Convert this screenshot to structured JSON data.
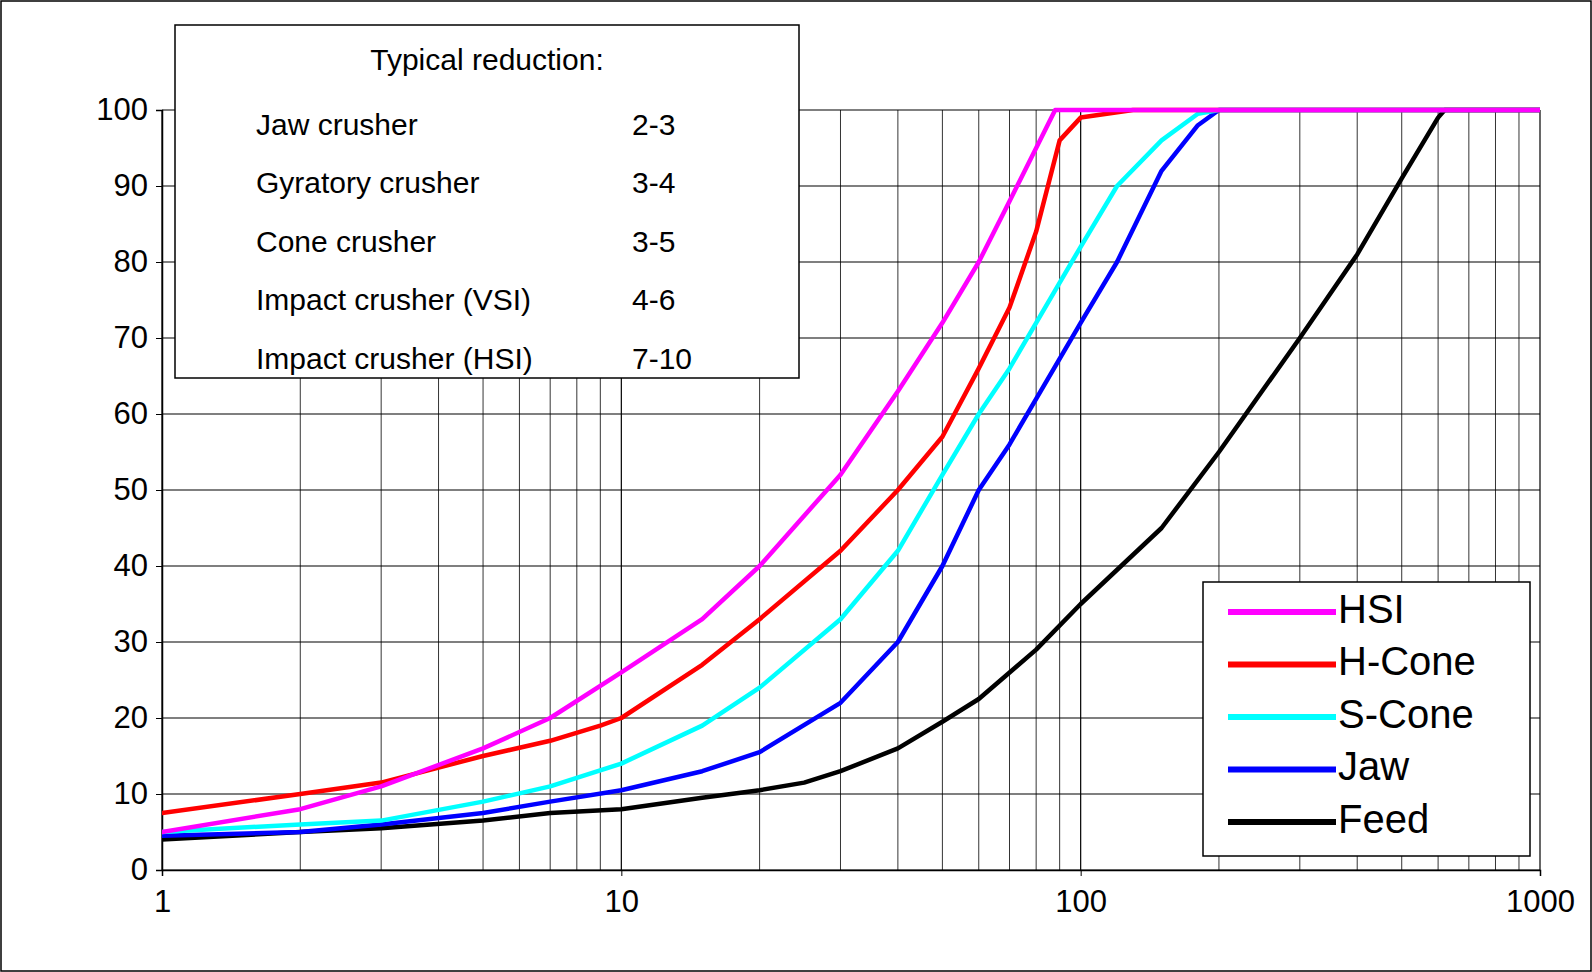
{
  "chart_data": {
    "type": "line",
    "log": "x",
    "grid": true,
    "legend": "lower right",
    "xlim": [
      1,
      1000
    ],
    "xticks": [
      1,
      10,
      100,
      1000
    ],
    "x_minor_grid": [
      2,
      3,
      4,
      5,
      6,
      7,
      8,
      9,
      20,
      30,
      40,
      50,
      60,
      70,
      80,
      90,
      200,
      300,
      400,
      500,
      600,
      700,
      800,
      900
    ],
    "ylim": [
      0,
      100
    ],
    "yticks": [
      0,
      10,
      20,
      30,
      40,
      50,
      60,
      70,
      80,
      90,
      100
    ],
    "annotation": {
      "title": "Typical reduction:",
      "rows": [
        {
          "label": "Jaw crusher",
          "value": "2-3"
        },
        {
          "label": "Gyratory crusher",
          "value": "3-4"
        },
        {
          "label": "Cone crusher",
          "value": "3-5"
        },
        {
          "label": "Impact crusher (VSI)",
          "value": "4-6"
        },
        {
          "label": "Impact crusher (HSI)",
          "value": "7-10"
        }
      ]
    },
    "series": [
      {
        "name": "HSI",
        "color": "#ff00ff",
        "x": [
          1,
          2,
          3,
          5,
          7,
          10,
          15,
          20,
          30,
          40,
          50,
          60,
          70,
          80,
          88,
          1000
        ],
        "values": [
          5,
          8,
          11,
          16,
          20,
          26,
          33,
          40,
          52,
          63,
          72,
          80,
          88,
          95,
          100,
          100
        ]
      },
      {
        "name": "H-Cone",
        "color": "#ff0000",
        "x": [
          1,
          2,
          3,
          5,
          7,
          9,
          10,
          15,
          20,
          30,
          40,
          50,
          60,
          70,
          80,
          90,
          100,
          130,
          1000
        ],
        "values": [
          7.5,
          10,
          11.5,
          15,
          17,
          19,
          20,
          27,
          33,
          42,
          50,
          57,
          66,
          74,
          84,
          96,
          99,
          100,
          100
        ]
      },
      {
        "name": "S-Cone",
        "color": "#00ffff",
        "x": [
          1,
          2,
          3,
          5,
          7,
          10,
          15,
          20,
          30,
          40,
          50,
          60,
          70,
          80,
          100,
          120,
          150,
          180,
          200,
          1000
        ],
        "values": [
          5,
          6,
          6.5,
          9,
          11,
          14,
          19,
          24,
          33,
          42,
          52,
          60,
          66,
          72,
          82,
          90,
          96,
          99.5,
          100,
          100
        ]
      },
      {
        "name": "Jaw",
        "color": "#0000ff",
        "x": [
          1,
          2,
          3,
          5,
          7,
          10,
          15,
          20,
          30,
          40,
          50,
          60,
          70,
          80,
          100,
          120,
          150,
          180,
          200,
          1000
        ],
        "values": [
          4.5,
          5,
          6,
          7.5,
          9,
          10.5,
          13,
          15.5,
          22,
          30,
          40,
          50,
          56,
          62,
          72,
          80,
          92,
          98,
          100,
          100
        ]
      },
      {
        "name": "Feed",
        "color": "#000000",
        "x": [
          1,
          2,
          3,
          5,
          7,
          10,
          15,
          20,
          25,
          30,
          40,
          50,
          60,
          80,
          100,
          150,
          200,
          300,
          400,
          500,
          600,
          620,
          1000
        ],
        "values": [
          4,
          5,
          5.5,
          6.5,
          7.5,
          8,
          9.5,
          10.5,
          11.5,
          13,
          16,
          19.5,
          22.5,
          29,
          35,
          45,
          55,
          70,
          81,
          91,
          99,
          100,
          100
        ]
      }
    ]
  }
}
